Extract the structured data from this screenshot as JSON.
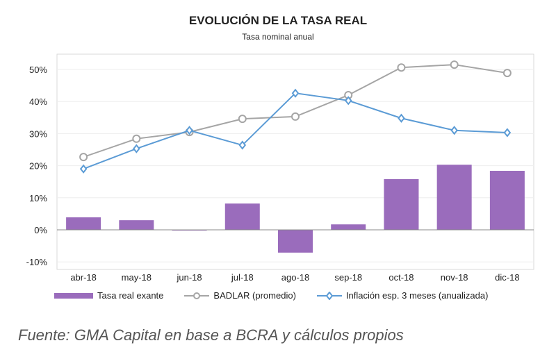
{
  "chart_data": {
    "type": "bar+line",
    "title": "EVOLUCIÓN DE LA TASA REAL",
    "subtitle": "Tasa nominal anual",
    "categories": [
      "abr-18",
      "may-18",
      "jun-18",
      "jul-18",
      "ago-18",
      "sep-18",
      "oct-18",
      "nov-18",
      "dic-18"
    ],
    "ylim": [
      -10,
      55
    ],
    "yticks": [
      -10,
      0,
      10,
      20,
      30,
      40,
      50
    ],
    "ytick_labels": [
      "-10%",
      "0%",
      "10%",
      "20%",
      "30%",
      "40%",
      "50%"
    ],
    "grid": true,
    "legend_position": "bottom",
    "series": [
      {
        "name": "Tasa real exante",
        "type": "bar",
        "color": "#9a6cbc",
        "values": [
          3.9,
          3.0,
          -0.2,
          8.2,
          -7.1,
          1.7,
          15.8,
          20.3,
          18.4
        ]
      },
      {
        "name": "BADLAR (promedio)",
        "type": "line",
        "marker": "circle",
        "color": "#a5a5a5",
        "values": [
          22.7,
          28.4,
          30.5,
          34.6,
          35.3,
          42.0,
          50.6,
          51.5,
          48.9
        ]
      },
      {
        "name": "Inflación esp. 3 meses (anualizada)",
        "type": "line",
        "marker": "diamond",
        "color": "#5b9bd5",
        "values": [
          19.0,
          25.3,
          31.0,
          26.4,
          42.6,
          40.3,
          34.8,
          31.0,
          30.3
        ]
      }
    ]
  },
  "source": "Fuente: GMA Capital en base a BCRA y cálculos propios"
}
